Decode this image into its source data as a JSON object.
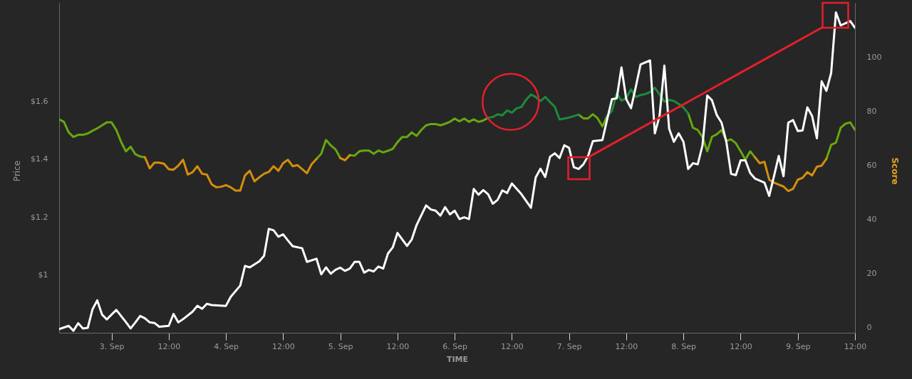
{
  "chart_data": {
    "type": "line",
    "xlabel": "TIME",
    "ylabel": "Price",
    "y2label": "Score",
    "x": [
      "--09-02T13:00",
      "--09-02T14:00",
      "--09-02T15:00",
      "--09-02T16:00",
      "--09-02T17:00",
      "--09-02T18:00",
      "--09-02T19:00",
      "--09-02T20:00",
      "--09-02T21:00",
      "--09-02T22:00",
      "--09-02T23:00",
      "--09-03T00:00",
      "--09-03T01:00",
      "--09-03T02:00",
      "--09-03T03:00",
      "--09-03T04:00",
      "--09-03T05:00",
      "--09-03T06:00",
      "--09-03T07:00",
      "--09-03T08:00",
      "--09-03T09:00",
      "--09-03T10:00",
      "--09-03T11:00",
      "--09-03T12:00",
      "--09-03T13:00",
      "--09-03T14:00",
      "--09-03T15:00",
      "--09-03T16:00",
      "--09-03T17:00",
      "--09-03T18:00",
      "--09-03T19:00",
      "--09-03T20:00",
      "--09-03T21:00",
      "--09-03T22:00",
      "--09-03T23:00",
      "--09-04T00:00",
      "--09-04T01:00",
      "--09-04T02:00",
      "--09-04T03:00",
      "--09-04T04:00",
      "--09-04T05:00",
      "--09-04T06:00",
      "--09-04T07:00",
      "--09-04T08:00",
      "--09-04T09:00",
      "--09-04T10:00",
      "--09-04T11:00",
      "--09-04T12:00",
      "--09-04T13:00",
      "--09-04T14:00",
      "--09-04T15:00",
      "--09-04T16:00",
      "--09-04T17:00",
      "--09-04T18:00",
      "--09-04T19:00",
      "--09-04T20:00",
      "--09-04T21:00",
      "--09-04T22:00",
      "--09-04T23:00",
      "--09-05T00:00",
      "--09-05T01:00",
      "--09-05T02:00",
      "--09-05T03:00",
      "--09-05T04:00",
      "--09-05T05:00",
      "--09-05T06:00",
      "--09-05T07:00",
      "--09-05T08:00",
      "--09-05T09:00",
      "--09-05T10:00",
      "--09-05T11:00",
      "--09-05T12:00",
      "--09-05T13:00",
      "--09-05T14:00",
      "--09-05T15:00",
      "--09-05T16:00",
      "--09-05T17:00",
      "--09-05T18:00",
      "--09-05T19:00",
      "--09-05T20:00",
      "--09-05T21:00",
      "--09-05T22:00",
      "--09-05T23:00",
      "--09-06T00:00",
      "--09-06T01:00",
      "--09-06T02:00",
      "--09-06T03:00",
      "--09-06T04:00",
      "--09-06T05:00",
      "--09-06T06:00",
      "--09-06T07:00",
      "--09-06T08:00",
      "--09-06T09:00",
      "--09-06T10:00",
      "--09-06T11:00",
      "--09-06T12:00",
      "--09-06T13:00",
      "--09-06T14:00",
      "--09-06T15:00",
      "--09-06T16:00",
      "--09-06T17:00",
      "--09-06T18:00",
      "--09-06T19:00",
      "--09-06T20:00",
      "--09-06T21:00",
      "--09-06T22:00",
      "--09-06T23:00",
      "--09-07T00:00",
      "--09-07T01:00",
      "--09-07T02:00",
      "--09-07T03:00",
      "--09-07T04:00",
      "--09-07T05:00",
      "--09-07T06:00",
      "--09-07T07:00",
      "--09-07T08:00",
      "--09-07T09:00",
      "--09-07T10:00",
      "--09-07T11:00",
      "--09-07T12:00",
      "--09-07T13:00",
      "--09-07T14:00",
      "--09-07T15:00",
      "--09-07T16:00",
      "--09-07T17:00",
      "--09-07T18:00",
      "--09-07T19:00",
      "--09-07T20:00",
      "--09-07T21:00",
      "--09-07T22:00",
      "--09-07T23:00",
      "--09-08T00:00",
      "--09-08T01:00",
      "--09-08T02:00",
      "--09-08T03:00",
      "--09-08T04:00",
      "--09-08T05:00",
      "--09-08T06:00",
      "--09-08T07:00",
      "--09-08T08:00",
      "--09-08T09:00",
      "--09-08T10:00",
      "--09-08T11:00",
      "--09-08T12:00",
      "--09-08T13:00",
      "--09-08T14:00",
      "--09-08T15:00",
      "--09-08T16:00",
      "--09-08T17:00",
      "--09-08T18:00",
      "--09-08T19:00",
      "--09-08T20:00",
      "--09-08T21:00",
      "--09-08T22:00",
      "--09-08T23:00",
      "--09-09T00:00",
      "--09-09T01:00",
      "--09-09T02:00",
      "--09-09T03:00",
      "--09-09T04:00",
      "--09-09T05:00",
      "--09-09T06:00",
      "--09-09T07:00",
      "--09-09T08:00",
      "--09-09T09:00",
      "--09-09T10:00",
      "--09-09T11:00",
      "--09-09T12:00"
    ],
    "xlim": [
      "--09-02T13:00",
      "--09-09T12:00"
    ],
    "xticks": [
      {
        "value": "--09-03",
        "label": "3. Sep"
      },
      {
        "value": "--09-03T12:00",
        "label": "12:00"
      },
      {
        "value": "--09-04",
        "label": "4. Sep"
      },
      {
        "value": "--09-04T12:00",
        "label": "12:00"
      },
      {
        "value": "--09-05",
        "label": "5. Sep"
      },
      {
        "value": "--09-05T12:00",
        "label": "12:00"
      },
      {
        "value": "--09-06",
        "label": "6. Sep"
      },
      {
        "value": "--09-06T12:00",
        "label": "12:00"
      },
      {
        "value": "--09-07",
        "label": "7. Sep"
      },
      {
        "value": "--09-07T12:00",
        "label": "12:00"
      },
      {
        "value": "--09-08",
        "label": "8. Sep"
      },
      {
        "value": "--09-08T12:00",
        "label": "12:00"
      },
      {
        "value": "--09-09",
        "label": "9. Sep"
      },
      {
        "value": "--09-09T12:00",
        "label": "12:00"
      }
    ],
    "ylim": [
      0.8,
      1.94
    ],
    "yticks": [
      {
        "value": 1,
        "label": "$1"
      },
      {
        "value": 1.2,
        "label": "$1.2"
      },
      {
        "value": 1.4,
        "label": "$1.4"
      },
      {
        "value": 1.6,
        "label": "$1.6"
      }
    ],
    "y2lim": [
      -2,
      120
    ],
    "y2ticks": [
      0,
      20,
      40,
      60,
      80,
      100
    ],
    "grid": false,
    "series": [
      {
        "color": "#ffffff",
        "x": [
          "--09-02T13:00",
          "--09-02T15:00",
          "--09-02T16:00",
          "--09-02T17:00",
          "--09-02T18:00",
          "--09-02T19:00",
          "--09-02T20:00",
          "--09-02T21:00",
          "--09-02T22:00",
          "--09-02T23:00",
          "--09-03T00:00",
          "--09-03T01:00",
          "--09-03T03:00",
          "--09-03T04:00",
          "--09-03T05:00",
          "--09-03T06:00",
          "--09-03T07:00",
          "--09-03T08:00",
          "--09-03T09:00",
          "--09-03T10:00",
          "--09-03T12:00",
          "--09-03T13:00",
          "--09-03T14:00",
          "--09-03T15:00",
          "--09-03T17:00",
          "--09-03T18:00",
          "--09-03T19:00",
          "--09-03T20:00",
          "--09-03T21:00",
          "--09-04T00:00",
          "--09-04T01:00",
          "--09-04T03:00",
          "--09-04T04:00",
          "--09-04T05:00",
          "--09-04T07:00",
          "--09-04T08:00",
          "--09-04T09:00",
          "--09-04T10:00",
          "--09-04T11:00",
          "--09-04T12:00",
          "--09-04T13:00",
          "--09-04T14:00",
          "--09-04T16:00",
          "--09-04T17:00",
          "--09-04T19:00",
          "--09-04T20:00",
          "--09-04T21:00",
          "--09-04T22:00",
          "--09-04T23:00",
          "--09-05T00:00",
          "--09-05T01:00",
          "--09-05T02:00",
          "--09-05T03:00",
          "--09-05T04:00",
          "--09-05T05:00",
          "--09-05T06:00",
          "--09-05T07:00",
          "--09-05T08:00",
          "--09-05T09:00",
          "--09-05T10:00",
          "--09-05T11:00",
          "--09-05T12:00",
          "--09-05T14:00",
          "--09-05T15:00",
          "--09-05T16:00",
          "--09-05T18:00",
          "--09-05T19:00",
          "--09-05T20:00",
          "--09-05T21:00",
          "--09-05T22:00",
          "--09-05T23:00",
          "--09-06T00:00",
          "--09-06T01:00",
          "--09-06T02:00",
          "--09-06T03:00",
          "--09-06T04:00",
          "--09-06T05:00",
          "--09-06T06:00",
          "--09-06T07:00",
          "--09-06T08:00",
          "--09-06T09:00",
          "--09-06T10:00",
          "--09-06T11:00",
          "--09-06T12:00",
          "--09-06T14:00",
          "--09-06T16:00",
          "--09-06T17:00",
          "--09-06T18:00",
          "--09-06T19:00",
          "--09-06T20:00",
          "--09-06T21:00",
          "--09-06T22:00",
          "--09-06T23:00",
          "--09-07T00:00",
          "--09-07T01:00",
          "--09-07T02:00",
          "--09-07T03:00",
          "--09-07T04:00",
          "--09-07T05:00",
          "--09-07T07:00",
          "--09-07T08:00",
          "--09-07T09:00",
          "--09-07T10:00",
          "--09-07T11:00",
          "--09-07T12:00",
          "--09-07T13:00",
          "--09-07T14:00",
          "--09-07T15:00",
          "--09-07T17:00",
          "--09-07T18:00",
          "--09-07T19:00",
          "--09-07T20:00",
          "--09-07T21:00",
          "--09-07T22:00",
          "--09-07T23:00",
          "--09-08T00:00",
          "--09-08T01:00",
          "--09-08T02:00",
          "--09-08T03:00",
          "--09-08T04:00",
          "--09-08T05:00",
          "--09-08T06:00",
          "--09-08T07:00",
          "--09-08T08:00",
          "--09-08T09:00",
          "--09-08T10:00",
          "--09-08T11:00",
          "--09-08T12:00",
          "--09-08T13:00",
          "--09-08T14:00",
          "--09-08T15:00",
          "--09-08T17:00",
          "--09-08T18:00",
          "--09-08T19:00",
          "--09-08T20:00",
          "--09-08T21:00",
          "--09-08T22:00",
          "--09-08T23:00",
          "--09-09T00:00",
          "--09-09T01:00",
          "--09-09T02:00",
          "--09-09T03:00",
          "--09-09T04:00",
          "--09-09T05:00",
          "--09-09T06:00",
          "--09-09T07:00",
          "--09-09T08:00",
          "--09-09T09:00",
          "--09-09T11:00",
          "--09-09T12:00"
        ],
        "values": [
          0.813,
          0.824,
          0.807,
          0.833,
          0.815,
          0.817,
          0.881,
          0.912,
          0.863,
          0.846,
          0.863,
          0.879,
          0.837,
          0.815,
          0.836,
          0.858,
          0.85,
          0.836,
          0.834,
          0.821,
          0.824,
          0.865,
          0.836,
          0.847,
          0.873,
          0.893,
          0.883,
          0.9,
          0.896,
          0.893,
          0.924,
          0.963,
          1.031,
          1.026,
          1.047,
          1.066,
          1.159,
          1.154,
          1.132,
          1.14,
          1.119,
          1.099,
          1.092,
          1.045,
          1.056,
          1.002,
          1.026,
          1.004,
          1.018,
          1.025,
          1.014,
          1.022,
          1.045,
          1.045,
          1.008,
          1.017,
          1.012,
          1.029,
          1.022,
          1.074,
          1.095,
          1.145,
          1.1,
          1.123,
          1.172,
          1.24,
          1.226,
          1.222,
          1.205,
          1.234,
          1.209,
          1.222,
          1.193,
          1.199,
          1.193,
          1.297,
          1.277,
          1.293,
          1.279,
          1.246,
          1.259,
          1.292,
          1.283,
          1.316,
          1.279,
          1.232,
          1.337,
          1.367,
          1.338,
          1.408,
          1.42,
          1.404,
          1.448,
          1.439,
          1.372,
          1.366,
          1.382,
          1.411,
          1.462,
          1.466,
          1.538,
          1.607,
          1.61,
          1.717,
          1.607,
          1.576,
          1.649,
          1.727,
          1.741,
          1.489,
          1.55,
          1.723,
          1.505,
          1.46,
          1.489,
          1.46,
          1.366,
          1.386,
          1.382,
          1.448,
          1.62,
          1.603,
          1.552,
          1.526,
          1.46,
          1.349,
          1.345,
          1.396,
          1.396,
          1.352,
          1.333,
          1.319,
          1.273,
          1.341,
          1.411,
          1.341,
          1.526,
          1.535,
          1.497,
          1.499,
          1.579,
          1.549,
          1.472,
          1.669,
          1.636,
          1.698,
          1.907,
          1.862,
          1.877,
          1.854
        ]
      },
      {
        "color": "#66a80f",
        "axis": "y2",
        "values": [
          76.9,
          76.0,
          72.1,
          70.4,
          71.2,
          71.2,
          71.7,
          72.7,
          73.6,
          74.7,
          75.8,
          75.8,
          73.0,
          68.6,
          65.1,
          66.8,
          64.0,
          63.2,
          62.9,
          null,
          null,
          null,
          null,
          null,
          null,
          null,
          null,
          null,
          null,
          null,
          null,
          null,
          null,
          null,
          null,
          null,
          null,
          null,
          null,
          null,
          null,
          null,
          null,
          null,
          null,
          null,
          null,
          null,
          null,
          null,
          null,
          null,
          null,
          null,
          62.3,
          64.2,
          69.3,
          67.3,
          65.8,
          62.6,
          null,
          63.7,
          63.5,
          65.1,
          65.4,
          65.4,
          64.2,
          65.4,
          64.7,
          65.3,
          66.0,
          68.5,
          70.4,
          70.4,
          72.1,
          70.8,
          73.0,
          74.7,
          75.2,
          75.2,
          74.7,
          75.3,
          76.0,
          77.2,
          76.2,
          77.2,
          76.0,
          76.9,
          76.0,
          76.5,
          77.5,
          null,
          null,
          null,
          null,
          null,
          null,
          null,
          null,
          null,
          null,
          null,
          null,
          null,
          null,
          null,
          null,
          null,
          null,
          78.7,
          77.3,
          77.3,
          78.8,
          77.3,
          74.3,
          78.2,
          null,
          null,
          null,
          null,
          null,
          null,
          null,
          null,
          null,
          null,
          null,
          null,
          null,
          null,
          null,
          null,
          79.1,
          73.8,
          73.0,
          70.4,
          65.1,
          70.5,
          71.4,
          73.0,
          69.0,
          69.5,
          68.1,
          65.1,
          62.0,
          65.1,
          62.9,
          null,
          null,
          null,
          null,
          null,
          null,
          null,
          null,
          null,
          null,
          null,
          null,
          null,
          null,
          62.3,
          67.5,
          68.3,
          73.8,
          75.3,
          75.8,
          73.0
        ]
      },
      {
        "color": "#d68f0a",
        "axis": "y2",
        "values": [
          null,
          null,
          null,
          null,
          null,
          null,
          null,
          null,
          null,
          null,
          null,
          null,
          null,
          null,
          null,
          null,
          null,
          null,
          62.9,
          58.8,
          60.9,
          60.9,
          60.5,
          58.5,
          58.3,
          59.8,
          62.0,
          56.5,
          57.4,
          59.6,
          56.8,
          56.5,
          52.9,
          51.8,
          52.0,
          52.6,
          51.8,
          50.6,
          50.6,
          56.2,
          57.9,
          54.0,
          55.5,
          56.8,
          57.5,
          59.6,
          57.9,
          60.7,
          62.0,
          59.6,
          60.0,
          58.5,
          57.0,
          60.4,
          62.3,
          null,
          null,
          null,
          null,
          62.6,
          61.8,
          63.7,
          null,
          null,
          null,
          null,
          null,
          null,
          null,
          null,
          null,
          null,
          null,
          null,
          null,
          null,
          null,
          null,
          null,
          null,
          null,
          null,
          null,
          null,
          null,
          null,
          null,
          null,
          null,
          null,
          null,
          null,
          null,
          null,
          null,
          null,
          null,
          null,
          null,
          null,
          null,
          null,
          null,
          null,
          null,
          null,
          null,
          null,
          null,
          null,
          null,
          null,
          null,
          null,
          null,
          null,
          null,
          null,
          null,
          null,
          null,
          null,
          null,
          null,
          null,
          null,
          null,
          null,
          null,
          null,
          null,
          null,
          null,
          null,
          null,
          null,
          null,
          null,
          null,
          null,
          null,
          null,
          null,
          null,
          null,
          null,
          62.9,
          60.7,
          61.2,
          54.6,
          53.5,
          52.8,
          52.1,
          50.4,
          51.2,
          54.6,
          55.3,
          57.4,
          56.2,
          59.4,
          59.8,
          62.3,
          null,
          null,
          null,
          null,
          null,
          null
        ]
      },
      {
        "color": "#1d8a3c",
        "axis": "y2",
        "values": [
          null,
          null,
          null,
          null,
          null,
          null,
          null,
          null,
          null,
          null,
          null,
          null,
          null,
          null,
          null,
          null,
          null,
          null,
          null,
          null,
          null,
          null,
          null,
          null,
          null,
          null,
          null,
          null,
          null,
          null,
          null,
          null,
          null,
          null,
          null,
          null,
          null,
          null,
          null,
          null,
          null,
          null,
          null,
          null,
          null,
          null,
          null,
          null,
          null,
          null,
          null,
          null,
          null,
          null,
          null,
          null,
          null,
          null,
          null,
          null,
          null,
          null,
          null,
          null,
          null,
          null,
          null,
          null,
          null,
          null,
          null,
          null,
          null,
          null,
          null,
          null,
          null,
          null,
          null,
          null,
          null,
          null,
          null,
          null,
          null,
          null,
          null,
          null,
          null,
          null,
          77.5,
          77.8,
          78.8,
          78.4,
          80.2,
          79.4,
          81.0,
          81.5,
          84.2,
          86.1,
          85.2,
          83.7,
          85.2,
          83.3,
          81.6,
          76.9,
          77.2,
          77.6,
          78.1,
          78.7,
          null,
          null,
          null,
          null,
          null,
          78.2,
          80.0,
          86.5,
          83.8,
          84.8,
          88.0,
          85.2,
          85.9,
          86.3,
          87.0,
          88.6,
          86.1,
          83.5,
          84.1,
          83.7,
          82.6,
          81.3,
          79.1,
          null,
          null,
          null,
          null,
          null,
          null,
          null,
          null,
          null,
          null,
          null,
          null,
          null,
          null,
          null,
          null,
          null,
          null,
          null,
          null,
          null,
          null,
          null,
          null,
          null,
          null,
          null,
          null,
          null,
          null,
          null,
          null,
          null,
          null,
          null
        ]
      },
      {
        "color": "#e3202b",
        "x": [
          "--09-07T04:18",
          "--09-09T05:12"
        ],
        "values": [
          1.409,
          1.856
        ]
      }
    ]
  }
}
